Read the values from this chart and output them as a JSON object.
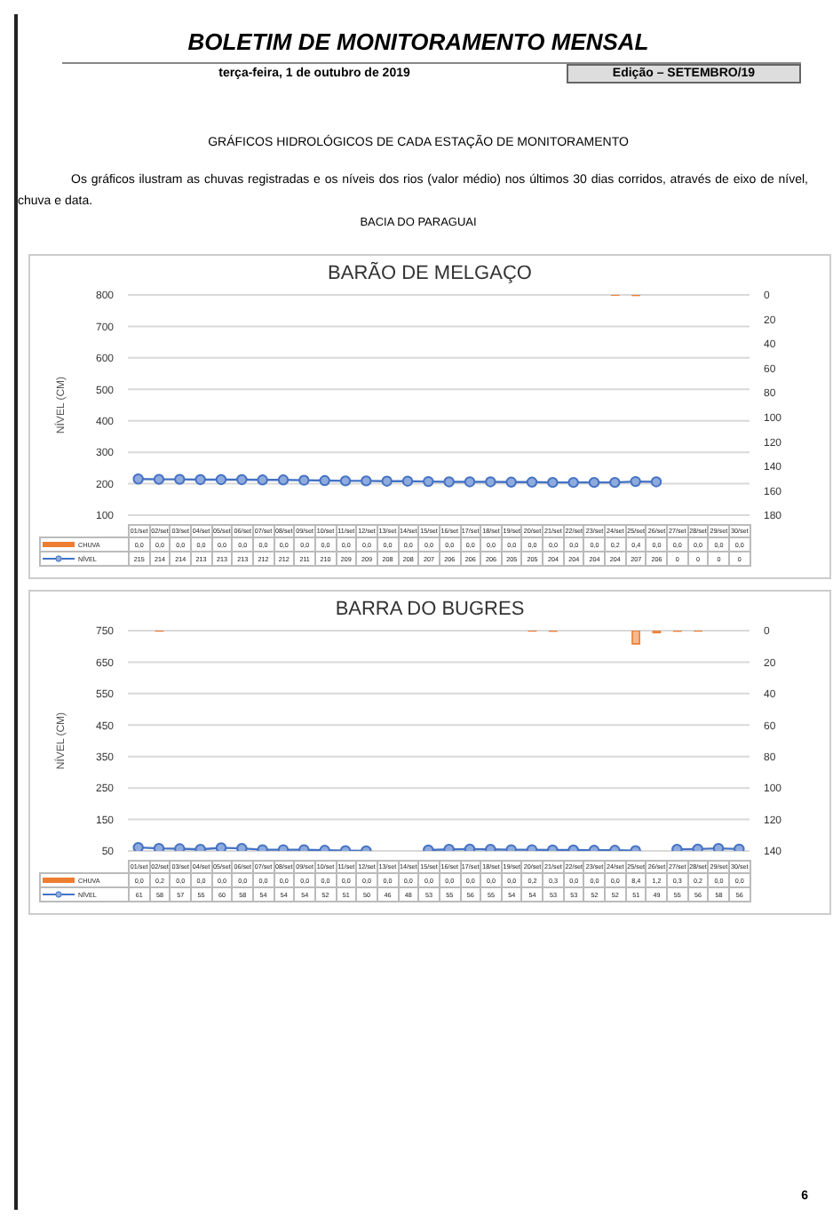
{
  "chart_data": [
    {
      "type": "line",
      "title": "BARÃO DE MELGAÇO",
      "ylabel": "NÍVEL (CM)",
      "annotations": [
        "BOLETIM DE MONITORAMENTO MENSAL",
        "terça-feira, 1 de outubro de 2019",
        "Edição – SETEMBRO/19",
        "GRÁFICOS HIDROLÓGICOS DE CADA ESTAÇÃO DE MONITORAMENTO",
        "Os gráficos ilustram as chuvas registradas e os níveis dos rios (valor médio) nos últimos 30 dias corridos, através de eixo de nível, chuva e data.",
        "BACIA DO PARAGUAI"
      ],
      "categories": [
        "01/set",
        "02/set",
        "03/set",
        "04/set",
        "05/set",
        "06/set",
        "07/set",
        "08/set",
        "09/set",
        "10/set",
        "11/set",
        "12/set",
        "13/set",
        "14/set",
        "15/set",
        "16/set",
        "17/set",
        "18/set",
        "19/set",
        "20/set",
        "21/set",
        "22/set",
        "23/set",
        "24/set",
        "25/set",
        "26/set",
        "27/set",
        "28/set",
        "29/set",
        "30/set"
      ],
      "series": [
        {
          "name": "CHUVA",
          "type": "bar",
          "axis": "y2",
          "color": "#ed7d31",
          "values": [
            0,
            0,
            0,
            0,
            0,
            0,
            0,
            0,
            0,
            0,
            0,
            0,
            0,
            0,
            0,
            0,
            0,
            0,
            0,
            0,
            0,
            0,
            0,
            0.2,
            0.4,
            0,
            0,
            0,
            0,
            0
          ],
          "value_labels": [
            "0,0",
            "0,0",
            "0,0",
            "0,0",
            "0,0",
            "0,0",
            "0,0",
            "0,0",
            "0,0",
            "0,0",
            "0,0",
            "0,0",
            "0,0",
            "0,0",
            "0,0",
            "0,0",
            "0,0",
            "0,0",
            "0,0",
            "0,0",
            "0,0",
            "0,0",
            "0,0",
            "0,2",
            "0,4",
            "0,0",
            "0,0",
            "0,0",
            "0,0",
            "0,0"
          ]
        },
        {
          "name": "NÍVEL",
          "type": "line",
          "color": "#4472c4",
          "values": [
            215,
            214,
            214,
            213,
            213,
            213,
            212,
            212,
            211,
            210,
            209,
            209,
            208,
            208,
            207,
            206,
            206,
            206,
            205,
            205,
            204,
            204,
            204,
            204,
            207,
            206,
            null,
            null,
            null,
            null
          ],
          "value_labels": [
            "215",
            "214",
            "214",
            "213",
            "213",
            "213",
            "212",
            "212",
            "211",
            "210",
            "209",
            "209",
            "208",
            "208",
            "207",
            "206",
            "206",
            "206",
            "205",
            "205",
            "204",
            "204",
            "204",
            "204",
            "207",
            "206",
            "0",
            "0",
            "0",
            "0"
          ]
        }
      ],
      "ylim": [
        100,
        800
      ],
      "yticks": [
        100,
        200,
        300,
        400,
        500,
        600,
        700,
        800
      ],
      "y2lim": [
        180,
        0
      ],
      "y2ticks": [
        0,
        20,
        40,
        60,
        80,
        100,
        120,
        140,
        160,
        180
      ],
      "grid": "y",
      "legend": "bottom",
      "marker": "circle"
    },
    {
      "type": "line",
      "title": "BARRA DO BUGRES",
      "ylabel": "NÍVEL (CM)",
      "annotations": [
        "6"
      ],
      "categories": [
        "01/set",
        "02/set",
        "03/set",
        "04/set",
        "05/set",
        "06/set",
        "07/set",
        "08/set",
        "09/set",
        "10/set",
        "11/set",
        "12/set",
        "13/set",
        "14/set",
        "15/set",
        "16/set",
        "17/set",
        "18/set",
        "19/set",
        "20/set",
        "21/set",
        "22/set",
        "23/set",
        "24/set",
        "25/set",
        "26/set",
        "27/set",
        "28/set",
        "29/set",
        "30/set"
      ],
      "series": [
        {
          "name": "CHUVA",
          "type": "bar",
          "axis": "y2",
          "color": "#ed7d31",
          "values": [
            0,
            0.2,
            0,
            0,
            0,
            0,
            0,
            0,
            0,
            0,
            0,
            0,
            0,
            0,
            0,
            0,
            0,
            0,
            0,
            0.2,
            0.3,
            0,
            0,
            0,
            8.4,
            1.2,
            0.3,
            0.2,
            0,
            0
          ],
          "value_labels": [
            "0,0",
            "0,2",
            "0,0",
            "0,0",
            "0,0",
            "0,0",
            "0,0",
            "0,0",
            "0,0",
            "0,0",
            "0,0",
            "0,0",
            "0,0",
            "0,0",
            "0,0",
            "0,0",
            "0,0",
            "0,0",
            "0,0",
            "0,2",
            "0,3",
            "0,0",
            "0,0",
            "0,0",
            "8,4",
            "1,2",
            "0,3",
            "0,2",
            "0,0",
            "0,0"
          ]
        },
        {
          "name": "NÍVEL",
          "type": "line",
          "color": "#4472c4",
          "values": [
            61,
            58,
            57,
            55,
            60,
            58,
            54,
            54,
            54,
            52,
            51,
            50,
            null,
            null,
            53,
            55,
            56,
            55,
            54,
            54,
            53,
            53,
            52,
            52,
            51,
            null,
            55,
            56,
            58,
            56
          ],
          "value_labels": [
            "61",
            "58",
            "57",
            "55",
            "60",
            "58",
            "54",
            "54",
            "54",
            "52",
            "51",
            "50",
            "46",
            "48",
            "53",
            "55",
            "56",
            "55",
            "54",
            "54",
            "53",
            "53",
            "52",
            "52",
            "51",
            "49",
            "55",
            "56",
            "58",
            "56"
          ]
        }
      ],
      "ylim": [
        50,
        750
      ],
      "yticks": [
        50,
        150,
        250,
        350,
        450,
        550,
        650,
        750
      ],
      "y2lim": [
        140,
        0
      ],
      "y2ticks": [
        0,
        20,
        40,
        60,
        80,
        100,
        120,
        140
      ],
      "grid": "y",
      "legend": "bottom",
      "marker": "circle"
    }
  ]
}
